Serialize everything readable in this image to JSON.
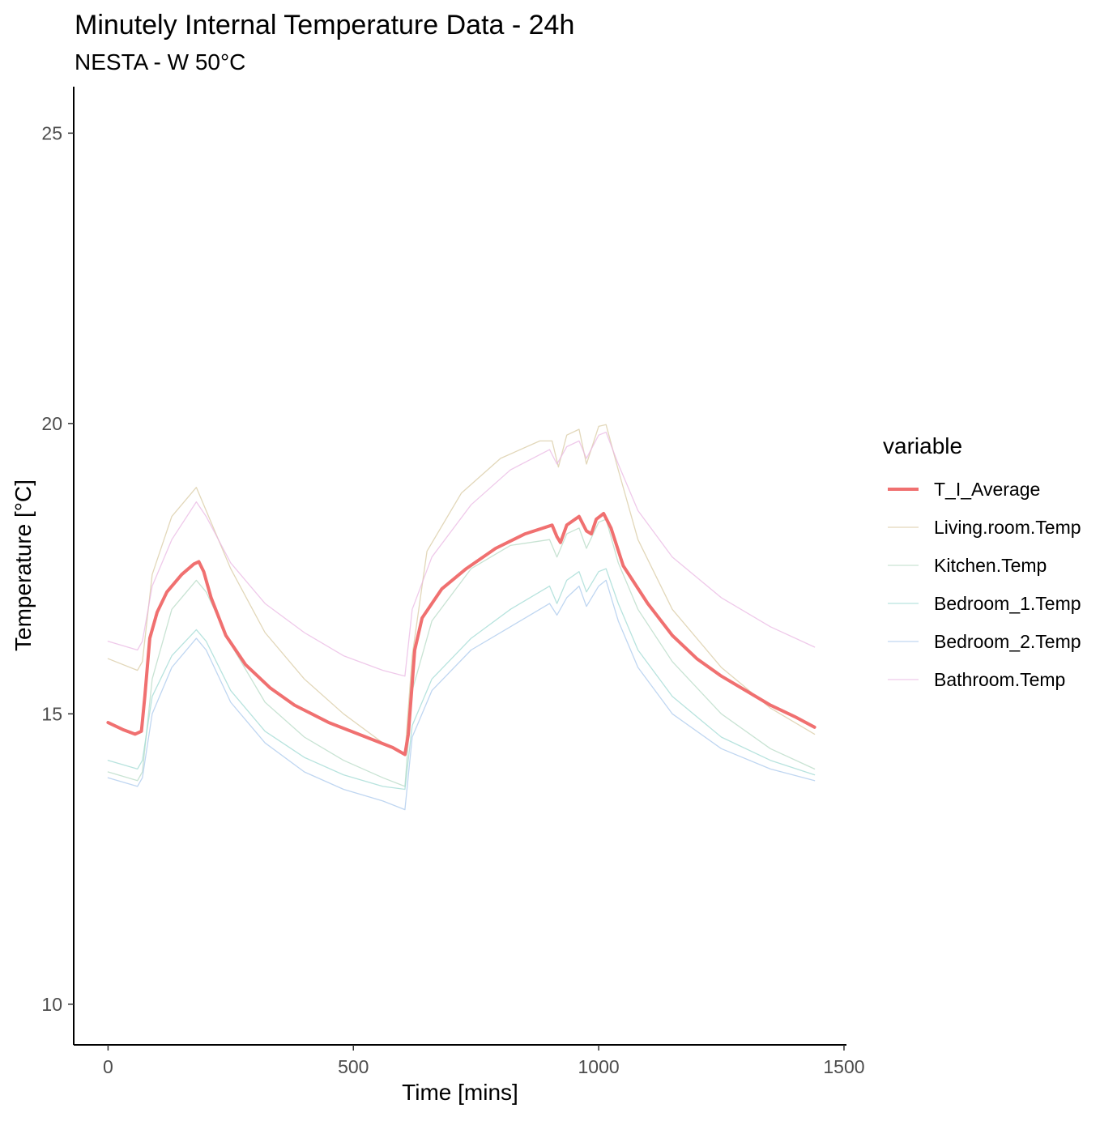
{
  "chart_data": {
    "type": "line",
    "title": "Minutely Internal Temperature Data - 24h",
    "subtitle": "NESTA - W 50°C",
    "xlabel": "Time [mins]",
    "ylabel": "Temperature [°C]",
    "xlim": [
      -70,
      1505
    ],
    "ylim": [
      9.3,
      25.8
    ],
    "xticks": [
      0,
      500,
      1000,
      1500
    ],
    "yticks": [
      10,
      15,
      20,
      25
    ],
    "grid": false,
    "legend": {
      "title": "variable",
      "position": "right"
    },
    "series": [
      {
        "name": "T_I_Average",
        "color": "#F07070",
        "width": 4,
        "opacity": 1,
        "points": [
          [
            0,
            14.85
          ],
          [
            30,
            14.73
          ],
          [
            55,
            14.65
          ],
          [
            68,
            14.7
          ],
          [
            75,
            15.3
          ],
          [
            85,
            16.3
          ],
          [
            100,
            16.75
          ],
          [
            120,
            17.1
          ],
          [
            150,
            17.4
          ],
          [
            175,
            17.58
          ],
          [
            185,
            17.62
          ],
          [
            195,
            17.45
          ],
          [
            210,
            17.0
          ],
          [
            240,
            16.35
          ],
          [
            280,
            15.85
          ],
          [
            330,
            15.45
          ],
          [
            380,
            15.15
          ],
          [
            450,
            14.85
          ],
          [
            520,
            14.62
          ],
          [
            580,
            14.42
          ],
          [
            605,
            14.3
          ],
          [
            612,
            14.65
          ],
          [
            625,
            16.1
          ],
          [
            640,
            16.65
          ],
          [
            680,
            17.15
          ],
          [
            730,
            17.5
          ],
          [
            790,
            17.85
          ],
          [
            850,
            18.1
          ],
          [
            905,
            18.25
          ],
          [
            915,
            18.05
          ],
          [
            922,
            17.95
          ],
          [
            935,
            18.25
          ],
          [
            960,
            18.4
          ],
          [
            975,
            18.15
          ],
          [
            985,
            18.1
          ],
          [
            995,
            18.35
          ],
          [
            1010,
            18.45
          ],
          [
            1025,
            18.2
          ],
          [
            1050,
            17.55
          ],
          [
            1100,
            16.9
          ],
          [
            1150,
            16.35
          ],
          [
            1200,
            15.95
          ],
          [
            1250,
            15.65
          ],
          [
            1300,
            15.4
          ],
          [
            1350,
            15.15
          ],
          [
            1400,
            14.95
          ],
          [
            1440,
            14.77
          ]
        ]
      },
      {
        "name": "Living.room.Temp",
        "color": "#D8C9A2",
        "width": 1.3,
        "opacity": 0.75,
        "points": [
          [
            0,
            15.95
          ],
          [
            60,
            15.75
          ],
          [
            70,
            15.9
          ],
          [
            90,
            17.4
          ],
          [
            130,
            18.4
          ],
          [
            180,
            18.9
          ],
          [
            200,
            18.5
          ],
          [
            250,
            17.5
          ],
          [
            320,
            16.4
          ],
          [
            400,
            15.6
          ],
          [
            480,
            15.0
          ],
          [
            560,
            14.5
          ],
          [
            605,
            14.3
          ],
          [
            620,
            16.0
          ],
          [
            650,
            17.8
          ],
          [
            720,
            18.8
          ],
          [
            800,
            19.4
          ],
          [
            880,
            19.7
          ],
          [
            905,
            19.7
          ],
          [
            918,
            19.25
          ],
          [
            935,
            19.8
          ],
          [
            960,
            19.9
          ],
          [
            975,
            19.3
          ],
          [
            1000,
            19.95
          ],
          [
            1015,
            19.98
          ],
          [
            1040,
            19.2
          ],
          [
            1080,
            18.0
          ],
          [
            1150,
            16.8
          ],
          [
            1250,
            15.8
          ],
          [
            1350,
            15.1
          ],
          [
            1440,
            14.65
          ]
        ]
      },
      {
        "name": "Kitchen.Temp",
        "color": "#B5D9C4",
        "width": 1.3,
        "opacity": 0.75,
        "points": [
          [
            0,
            14.0
          ],
          [
            60,
            13.85
          ],
          [
            70,
            14.0
          ],
          [
            90,
            15.6
          ],
          [
            130,
            16.8
          ],
          [
            180,
            17.3
          ],
          [
            200,
            17.1
          ],
          [
            250,
            16.2
          ],
          [
            320,
            15.2
          ],
          [
            400,
            14.6
          ],
          [
            480,
            14.2
          ],
          [
            560,
            13.9
          ],
          [
            605,
            13.75
          ],
          [
            620,
            15.4
          ],
          [
            660,
            16.6
          ],
          [
            740,
            17.5
          ],
          [
            820,
            17.9
          ],
          [
            900,
            18.0
          ],
          [
            915,
            17.7
          ],
          [
            935,
            18.1
          ],
          [
            960,
            18.2
          ],
          [
            975,
            17.85
          ],
          [
            1000,
            18.3
          ],
          [
            1015,
            18.35
          ],
          [
            1040,
            17.6
          ],
          [
            1080,
            16.8
          ],
          [
            1150,
            15.9
          ],
          [
            1250,
            15.0
          ],
          [
            1350,
            14.4
          ],
          [
            1440,
            14.05
          ]
        ]
      },
      {
        "name": "Bedroom_1.Temp",
        "color": "#9FDAD3",
        "width": 1.3,
        "opacity": 0.75,
        "points": [
          [
            0,
            14.2
          ],
          [
            60,
            14.05
          ],
          [
            70,
            14.2
          ],
          [
            90,
            15.3
          ],
          [
            130,
            16.0
          ],
          [
            180,
            16.45
          ],
          [
            200,
            16.25
          ],
          [
            250,
            15.4
          ],
          [
            320,
            14.7
          ],
          [
            400,
            14.25
          ],
          [
            480,
            13.95
          ],
          [
            560,
            13.75
          ],
          [
            605,
            13.7
          ],
          [
            620,
            14.8
          ],
          [
            660,
            15.6
          ],
          [
            740,
            16.3
          ],
          [
            820,
            16.8
          ],
          [
            900,
            17.2
          ],
          [
            915,
            16.9
          ],
          [
            935,
            17.3
          ],
          [
            960,
            17.45
          ],
          [
            975,
            17.1
          ],
          [
            1000,
            17.45
          ],
          [
            1015,
            17.5
          ],
          [
            1040,
            16.9
          ],
          [
            1080,
            16.1
          ],
          [
            1150,
            15.3
          ],
          [
            1250,
            14.6
          ],
          [
            1350,
            14.2
          ],
          [
            1440,
            13.95
          ]
        ]
      },
      {
        "name": "Bedroom_2.Temp",
        "color": "#A9C8EC",
        "width": 1.3,
        "opacity": 0.75,
        "points": [
          [
            0,
            13.9
          ],
          [
            60,
            13.75
          ],
          [
            70,
            13.9
          ],
          [
            90,
            15.0
          ],
          [
            130,
            15.8
          ],
          [
            180,
            16.3
          ],
          [
            200,
            16.1
          ],
          [
            250,
            15.2
          ],
          [
            320,
            14.5
          ],
          [
            400,
            14.0
          ],
          [
            480,
            13.7
          ],
          [
            560,
            13.5
          ],
          [
            605,
            13.35
          ],
          [
            620,
            14.6
          ],
          [
            660,
            15.4
          ],
          [
            740,
            16.1
          ],
          [
            820,
            16.5
          ],
          [
            900,
            16.9
          ],
          [
            915,
            16.7
          ],
          [
            935,
            17.0
          ],
          [
            960,
            17.2
          ],
          [
            975,
            16.85
          ],
          [
            1000,
            17.2
          ],
          [
            1015,
            17.3
          ],
          [
            1040,
            16.6
          ],
          [
            1080,
            15.8
          ],
          [
            1150,
            15.0
          ],
          [
            1250,
            14.4
          ],
          [
            1350,
            14.05
          ],
          [
            1440,
            13.85
          ]
        ]
      },
      {
        "name": "Bathroom.Temp",
        "color": "#E9B7E3",
        "width": 1.3,
        "opacity": 0.75,
        "points": [
          [
            0,
            16.25
          ],
          [
            60,
            16.1
          ],
          [
            70,
            16.25
          ],
          [
            90,
            17.2
          ],
          [
            130,
            18.0
          ],
          [
            180,
            18.65
          ],
          [
            200,
            18.4
          ],
          [
            250,
            17.6
          ],
          [
            320,
            16.9
          ],
          [
            400,
            16.4
          ],
          [
            480,
            16.0
          ],
          [
            560,
            15.75
          ],
          [
            605,
            15.65
          ],
          [
            620,
            16.8
          ],
          [
            660,
            17.7
          ],
          [
            740,
            18.6
          ],
          [
            820,
            19.2
          ],
          [
            900,
            19.55
          ],
          [
            915,
            19.3
          ],
          [
            935,
            19.6
          ],
          [
            960,
            19.7
          ],
          [
            975,
            19.4
          ],
          [
            1000,
            19.8
          ],
          [
            1015,
            19.85
          ],
          [
            1040,
            19.3
          ],
          [
            1080,
            18.5
          ],
          [
            1150,
            17.7
          ],
          [
            1250,
            17.0
          ],
          [
            1350,
            16.5
          ],
          [
            1440,
            16.15
          ]
        ]
      }
    ]
  }
}
